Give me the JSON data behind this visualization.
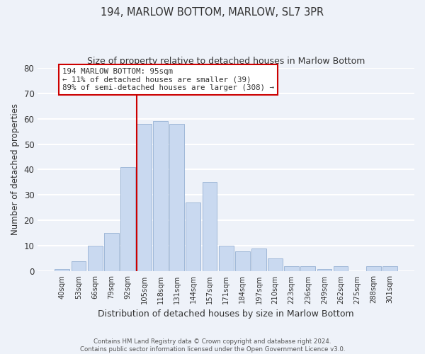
{
  "title": "194, MARLOW BOTTOM, MARLOW, SL7 3PR",
  "subtitle": "Size of property relative to detached houses in Marlow Bottom",
  "xlabel": "Distribution of detached houses by size in Marlow Bottom",
  "ylabel": "Number of detached properties",
  "bar_labels": [
    "40sqm",
    "53sqm",
    "66sqm",
    "79sqm",
    "92sqm",
    "105sqm",
    "118sqm",
    "131sqm",
    "144sqm",
    "157sqm",
    "171sqm",
    "184sqm",
    "197sqm",
    "210sqm",
    "223sqm",
    "236sqm",
    "249sqm",
    "262sqm",
    "275sqm",
    "288sqm",
    "301sqm"
  ],
  "bar_values": [
    1,
    4,
    10,
    15,
    41,
    58,
    59,
    58,
    27,
    35,
    10,
    8,
    9,
    5,
    2,
    2,
    1,
    2,
    0,
    2,
    2
  ],
  "bar_color": "#c9d9f0",
  "bar_edge_color": "#a0b8d8",
  "vline_color": "#cc0000",
  "ylim": [
    0,
    80
  ],
  "yticks": [
    0,
    10,
    20,
    30,
    40,
    50,
    60,
    70,
    80
  ],
  "annotation_text": "194 MARLOW BOTTOM: 95sqm\n← 11% of detached houses are smaller (39)\n89% of semi-detached houses are larger (308) →",
  "annotation_box_color": "#ffffff",
  "annotation_box_edge": "#cc0000",
  "footer_line1": "Contains HM Land Registry data © Crown copyright and database right 2024.",
  "footer_line2": "Contains public sector information licensed under the Open Government Licence v3.0.",
  "background_color": "#eef2f9",
  "grid_color": "#ffffff",
  "title_fontsize": 10.5,
  "subtitle_fontsize": 9
}
